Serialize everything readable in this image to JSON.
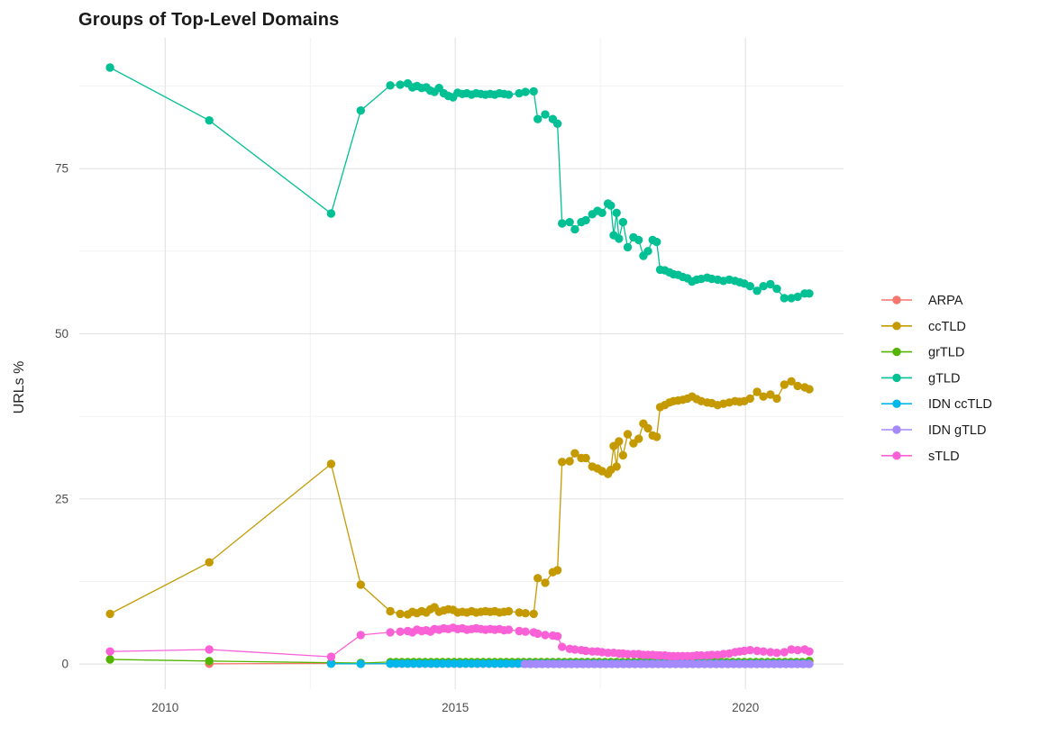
{
  "chart_data": {
    "type": "line",
    "title": "Groups of Top-Level Domains",
    "xlabel": "",
    "ylabel": "URLs %",
    "xlim": [
      2008.52,
      2021.69
    ],
    "ylim": [
      -3.8,
      94.8
    ],
    "x_ticks": [
      {
        "value": 2010,
        "label": "2010"
      },
      {
        "value": 2015,
        "label": "2015"
      },
      {
        "value": 2020,
        "label": "2020"
      }
    ],
    "x_minor": [
      2012.5,
      2017.5
    ],
    "y_ticks": [
      {
        "value": 0,
        "label": "0"
      },
      {
        "value": 25,
        "label": "25"
      },
      {
        "value": 50,
        "label": "50"
      },
      {
        "value": 75,
        "label": "75"
      }
    ],
    "y_minor": [
      12.5,
      37.5,
      62.5,
      87.5
    ],
    "grid": true,
    "legend_position": "right",
    "style": {
      "background": "#ffffff",
      "grid_major": "#e4e4e4",
      "grid_minor": "#f2f2f2",
      "tick_label_color": "#4d4d4d",
      "title_color": "#1a1a1a",
      "axis_title_color": "#262626",
      "legend_label_color": "#1a1a1a"
    },
    "series": [
      {
        "name": "ARPA",
        "color": "#F8766D",
        "points": [
          [
            2010.76,
            0.05
          ],
          [
            2012.86,
            0.1
          ],
          [
            2013.37,
            0.05
          ]
        ],
        "runs": [
          {
            "x0": 2013.88,
            "x1": 2021.1,
            "step": 0.1,
            "y": 0.05
          }
        ]
      },
      {
        "name": "ccTLD",
        "color": "#C49A00",
        "points": [
          [
            2009.05,
            7.6
          ],
          [
            2010.76,
            15.4
          ],
          [
            2012.86,
            30.3
          ],
          [
            2013.37,
            12.0
          ],
          [
            2013.88,
            8.0
          ],
          [
            2014.05,
            7.6
          ],
          [
            2014.18,
            7.5
          ],
          [
            2014.26,
            7.9
          ],
          [
            2014.34,
            7.7
          ],
          [
            2014.42,
            8.0
          ],
          [
            2014.5,
            7.8
          ],
          [
            2014.57,
            8.3
          ],
          [
            2014.64,
            8.6
          ],
          [
            2014.72,
            7.9
          ],
          [
            2014.8,
            8.1
          ],
          [
            2014.88,
            8.3
          ],
          [
            2014.96,
            8.2
          ],
          [
            2015.04,
            7.8
          ],
          [
            2015.12,
            7.9
          ],
          [
            2015.2,
            7.8
          ],
          [
            2015.28,
            8.0
          ],
          [
            2015.36,
            7.8
          ],
          [
            2015.44,
            7.9
          ],
          [
            2015.52,
            8.0
          ],
          [
            2015.6,
            7.9
          ],
          [
            2015.68,
            8.0
          ],
          [
            2015.76,
            7.8
          ],
          [
            2015.84,
            7.9
          ],
          [
            2015.92,
            8.0
          ],
          [
            2016.1,
            7.8
          ],
          [
            2016.21,
            7.7
          ],
          [
            2016.35,
            7.6
          ],
          [
            2016.42,
            13.0
          ],
          [
            2016.55,
            12.3
          ],
          [
            2016.68,
            13.9
          ],
          [
            2016.76,
            14.2
          ],
          [
            2016.84,
            30.6
          ],
          [
            2016.97,
            30.7
          ],
          [
            2017.06,
            31.9
          ],
          [
            2017.17,
            31.2
          ],
          [
            2017.25,
            31.2
          ],
          [
            2017.36,
            29.9
          ],
          [
            2017.45,
            29.6
          ],
          [
            2017.53,
            29.2
          ],
          [
            2017.63,
            28.8
          ],
          [
            2017.68,
            29.4
          ],
          [
            2017.73,
            33.0
          ],
          [
            2017.78,
            29.9
          ],
          [
            2017.82,
            33.7
          ],
          [
            2017.89,
            31.6
          ],
          [
            2017.97,
            34.8
          ],
          [
            2018.07,
            33.4
          ],
          [
            2018.16,
            34.1
          ],
          [
            2018.24,
            36.4
          ],
          [
            2018.32,
            35.7
          ],
          [
            2018.4,
            34.6
          ],
          [
            2018.47,
            34.4
          ],
          [
            2018.53,
            38.9
          ],
          [
            2018.61,
            39.2
          ],
          [
            2018.69,
            39.6
          ],
          [
            2018.76,
            39.8
          ],
          [
            2018.84,
            39.9
          ],
          [
            2018.92,
            40.0
          ],
          [
            2019.0,
            40.2
          ],
          [
            2019.08,
            40.5
          ],
          [
            2019.16,
            40.1
          ],
          [
            2019.24,
            39.8
          ],
          [
            2019.34,
            39.6
          ],
          [
            2019.42,
            39.5
          ],
          [
            2019.52,
            39.2
          ],
          [
            2019.62,
            39.4
          ],
          [
            2019.72,
            39.6
          ],
          [
            2019.82,
            39.8
          ],
          [
            2019.9,
            39.7
          ],
          [
            2019.98,
            39.8
          ],
          [
            2020.08,
            40.2
          ],
          [
            2020.2,
            41.2
          ],
          [
            2020.31,
            40.5
          ],
          [
            2020.43,
            40.8
          ],
          [
            2020.54,
            40.2
          ],
          [
            2020.67,
            42.3
          ],
          [
            2020.79,
            42.8
          ],
          [
            2020.9,
            42.1
          ],
          [
            2021.02,
            41.9
          ],
          [
            2021.1,
            41.6
          ]
        ]
      },
      {
        "name": "grTLD",
        "color": "#53B400",
        "points": [
          [
            2009.05,
            0.7
          ],
          [
            2010.76,
            0.45
          ],
          [
            2012.86,
            0.2
          ],
          [
            2013.37,
            0.15
          ],
          [
            2021.1,
            0.45
          ]
        ],
        "runs": [
          {
            "x0": 2013.88,
            "x1": 2021.05,
            "step": 0.1,
            "y": 0.3
          }
        ]
      },
      {
        "name": "gTLD",
        "color": "#00C094",
        "points": [
          [
            2009.05,
            90.3
          ],
          [
            2010.76,
            82.3
          ],
          [
            2012.86,
            68.2
          ],
          [
            2013.37,
            83.8
          ],
          [
            2013.88,
            87.6
          ],
          [
            2014.05,
            87.7
          ],
          [
            2014.18,
            87.9
          ],
          [
            2014.26,
            87.3
          ],
          [
            2014.34,
            87.5
          ],
          [
            2014.42,
            87.2
          ],
          [
            2014.5,
            87.3
          ],
          [
            2014.57,
            86.8
          ],
          [
            2014.64,
            86.6
          ],
          [
            2014.72,
            87.2
          ],
          [
            2014.8,
            86.4
          ],
          [
            2014.88,
            86.0
          ],
          [
            2014.96,
            85.8
          ],
          [
            2015.04,
            86.5
          ],
          [
            2015.12,
            86.3
          ],
          [
            2015.2,
            86.4
          ],
          [
            2015.28,
            86.2
          ],
          [
            2015.36,
            86.4
          ],
          [
            2015.44,
            86.3
          ],
          [
            2015.52,
            86.2
          ],
          [
            2015.6,
            86.3
          ],
          [
            2015.68,
            86.2
          ],
          [
            2015.76,
            86.4
          ],
          [
            2015.84,
            86.3
          ],
          [
            2015.92,
            86.2
          ],
          [
            2016.1,
            86.4
          ],
          [
            2016.21,
            86.6
          ],
          [
            2016.35,
            86.7
          ],
          [
            2016.42,
            82.5
          ],
          [
            2016.55,
            83.2
          ],
          [
            2016.68,
            82.5
          ],
          [
            2016.76,
            81.8
          ],
          [
            2016.84,
            66.7
          ],
          [
            2016.97,
            66.9
          ],
          [
            2017.06,
            65.8
          ],
          [
            2017.17,
            66.9
          ],
          [
            2017.25,
            67.2
          ],
          [
            2017.36,
            68.1
          ],
          [
            2017.45,
            68.6
          ],
          [
            2017.53,
            68.3
          ],
          [
            2017.63,
            69.7
          ],
          [
            2017.68,
            69.4
          ],
          [
            2017.73,
            64.9
          ],
          [
            2017.78,
            68.3
          ],
          [
            2017.82,
            64.4
          ],
          [
            2017.89,
            66.9
          ],
          [
            2017.97,
            63.1
          ],
          [
            2018.07,
            64.6
          ],
          [
            2018.16,
            64.2
          ],
          [
            2018.24,
            61.8
          ],
          [
            2018.32,
            62.5
          ],
          [
            2018.4,
            64.2
          ],
          [
            2018.47,
            63.9
          ],
          [
            2018.53,
            59.7
          ],
          [
            2018.61,
            59.6
          ],
          [
            2018.69,
            59.3
          ],
          [
            2018.76,
            59.0
          ],
          [
            2018.84,
            58.9
          ],
          [
            2018.92,
            58.6
          ],
          [
            2019.0,
            58.4
          ],
          [
            2019.08,
            57.9
          ],
          [
            2019.16,
            58.2
          ],
          [
            2019.24,
            58.3
          ],
          [
            2019.34,
            58.5
          ],
          [
            2019.42,
            58.3
          ],
          [
            2019.52,
            58.2
          ],
          [
            2019.62,
            58.0
          ],
          [
            2019.72,
            58.2
          ],
          [
            2019.82,
            58.0
          ],
          [
            2019.9,
            57.8
          ],
          [
            2019.98,
            57.6
          ],
          [
            2020.08,
            57.2
          ],
          [
            2020.2,
            56.5
          ],
          [
            2020.31,
            57.2
          ],
          [
            2020.43,
            57.5
          ],
          [
            2020.54,
            56.8
          ],
          [
            2020.67,
            55.4
          ],
          [
            2020.79,
            55.4
          ],
          [
            2020.9,
            55.6
          ],
          [
            2021.02,
            56.1
          ],
          [
            2021.1,
            56.1
          ]
        ]
      },
      {
        "name": "IDN ccTLD",
        "color": "#00B6EB",
        "points": [
          [
            2012.86,
            0.05
          ],
          [
            2013.37,
            0.03
          ]
        ],
        "runs": [
          {
            "x0": 2013.88,
            "x1": 2021.1,
            "step": 0.1,
            "y": 0.06
          }
        ]
      },
      {
        "name": "IDN gTLD",
        "color": "#A58AFF",
        "points": [],
        "runs": [
          {
            "x0": 2016.2,
            "x1": 2021.1,
            "step": 0.1,
            "y": 0.0
          }
        ]
      },
      {
        "name": "sTLD",
        "color": "#FB61D7",
        "points": [
          [
            2009.05,
            1.9
          ],
          [
            2010.76,
            2.2
          ],
          [
            2012.86,
            1.1
          ],
          [
            2013.37,
            4.4
          ],
          [
            2013.88,
            4.8
          ],
          [
            2014.05,
            4.9
          ],
          [
            2014.18,
            5.0
          ],
          [
            2014.26,
            4.8
          ],
          [
            2014.34,
            5.2
          ],
          [
            2014.42,
            5.0
          ],
          [
            2014.5,
            5.1
          ],
          [
            2014.57,
            4.9
          ],
          [
            2014.64,
            5.3
          ],
          [
            2014.72,
            5.2
          ],
          [
            2014.8,
            5.4
          ],
          [
            2014.88,
            5.3
          ],
          [
            2014.96,
            5.5
          ],
          [
            2015.04,
            5.3
          ],
          [
            2015.12,
            5.4
          ],
          [
            2015.2,
            5.2
          ],
          [
            2015.28,
            5.3
          ],
          [
            2015.36,
            5.4
          ],
          [
            2015.44,
            5.3
          ],
          [
            2015.52,
            5.2
          ],
          [
            2015.6,
            5.3
          ],
          [
            2015.68,
            5.2
          ],
          [
            2015.76,
            5.3
          ],
          [
            2015.84,
            5.1
          ],
          [
            2015.92,
            5.2
          ],
          [
            2016.1,
            5.0
          ],
          [
            2016.21,
            4.9
          ],
          [
            2016.35,
            4.8
          ],
          [
            2016.42,
            4.6
          ],
          [
            2016.55,
            4.4
          ],
          [
            2016.68,
            4.3
          ],
          [
            2016.76,
            4.2
          ],
          [
            2016.84,
            2.6
          ],
          [
            2016.97,
            2.3
          ],
          [
            2017.06,
            2.2
          ],
          [
            2017.17,
            2.1
          ],
          [
            2017.25,
            2.0
          ],
          [
            2017.36,
            1.9
          ],
          [
            2017.45,
            1.9
          ],
          [
            2017.53,
            1.8
          ],
          [
            2017.63,
            1.7
          ],
          [
            2017.73,
            1.7
          ],
          [
            2017.82,
            1.6
          ],
          [
            2017.89,
            1.6
          ],
          [
            2017.97,
            1.5
          ],
          [
            2018.07,
            1.5
          ],
          [
            2018.16,
            1.5
          ],
          [
            2018.24,
            1.4
          ],
          [
            2018.32,
            1.4
          ],
          [
            2018.4,
            1.4
          ],
          [
            2018.47,
            1.3
          ],
          [
            2018.53,
            1.3
          ],
          [
            2018.61,
            1.3
          ],
          [
            2018.69,
            1.2
          ],
          [
            2018.76,
            1.2
          ],
          [
            2018.84,
            1.2
          ],
          [
            2018.92,
            1.2
          ],
          [
            2019.0,
            1.2
          ],
          [
            2019.08,
            1.2
          ],
          [
            2019.16,
            1.3
          ],
          [
            2019.24,
            1.3
          ],
          [
            2019.34,
            1.3
          ],
          [
            2019.42,
            1.4
          ],
          [
            2019.52,
            1.4
          ],
          [
            2019.62,
            1.5
          ],
          [
            2019.72,
            1.6
          ],
          [
            2019.82,
            1.8
          ],
          [
            2019.9,
            1.9
          ],
          [
            2019.98,
            2.0
          ],
          [
            2020.08,
            2.1
          ],
          [
            2020.2,
            2.0
          ],
          [
            2020.31,
            1.9
          ],
          [
            2020.43,
            1.8
          ],
          [
            2020.54,
            1.7
          ],
          [
            2020.67,
            1.8
          ],
          [
            2020.79,
            2.2
          ],
          [
            2020.9,
            2.1
          ],
          [
            2021.02,
            2.2
          ],
          [
            2021.1,
            1.9
          ]
        ]
      }
    ]
  }
}
